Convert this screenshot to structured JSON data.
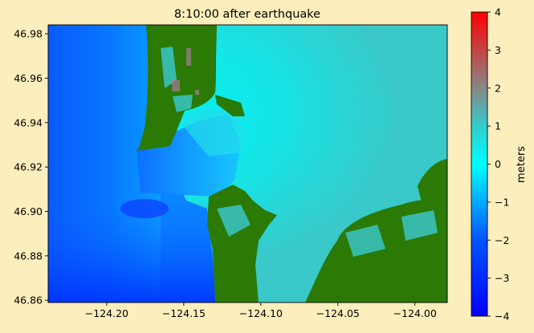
{
  "chart_data": {
    "type": "heatmap",
    "title": "8:10:00 after earthquake",
    "xlabel": "",
    "ylabel": "",
    "xlim": [
      -124.238,
      -123.979
    ],
    "ylim": [
      46.859,
      46.984
    ],
    "xticks": [
      -124.2,
      -124.15,
      -124.1,
      -124.05,
      -124.0
    ],
    "xtick_labels": [
      "−124.20",
      "−124.15",
      "−124.10",
      "−124.05",
      "−124.00"
    ],
    "yticks": [
      46.86,
      46.88,
      46.9,
      46.92,
      46.94,
      46.96,
      46.98
    ],
    "ytick_labels": [
      "46.86",
      "46.88",
      "46.90",
      "46.92",
      "46.94",
      "46.96",
      "46.98"
    ],
    "colorbar": {
      "label": "meters",
      "range": [
        -4,
        4
      ],
      "ticks": [
        -4,
        -3,
        -2,
        -1,
        0,
        1,
        2,
        3,
        4
      ],
      "tick_labels": [
        "−4",
        "−3",
        "−2",
        "−1",
        "0",
        "1",
        "2",
        "3",
        "4"
      ],
      "colors": [
        "#0000ff",
        "#0055ff",
        "#00aaff",
        "#00ffff",
        "#33cccc",
        "#888888",
        "#ff0000"
      ]
    },
    "land_color": "#2a7a05",
    "grid": false
  }
}
